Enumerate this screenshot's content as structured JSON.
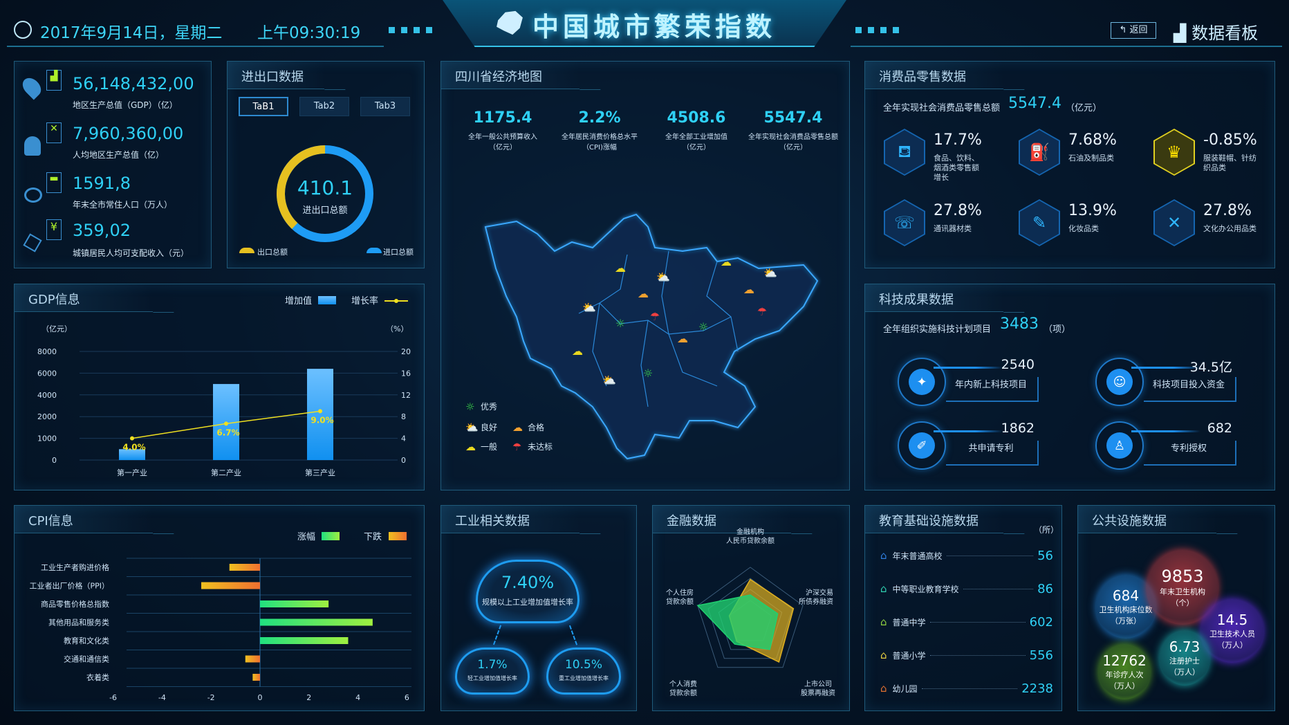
{
  "header": {
    "datetime": "2017年9月14日，星期二",
    "time": "上午09:30:19",
    "title": "中国城市繁荣指数",
    "back_label": "返回",
    "dashboard_label": "数据看板"
  },
  "overview": {
    "items": [
      {
        "value": "56,148,432,00",
        "label": "地区生产总值（GDP）（亿）",
        "icon": "location-pin-icon"
      },
      {
        "value": "7,960,360,00",
        "label": "人均地区生产总值（亿）",
        "icon": "worker-icon"
      },
      {
        "value": "1591,8",
        "label": "年末全市常住人口（万人）",
        "icon": "house-icon"
      },
      {
        "value": "359,02",
        "label": "城镇居民人均可支配收入（元）",
        "icon": "money-icon"
      }
    ]
  },
  "trade": {
    "title": "进出口数据",
    "tabs": [
      "TaB1",
      "Tab2",
      "Tab3"
    ],
    "active_tab": 0,
    "total_value": "410.1",
    "total_label": "进出口总额",
    "export_share": 0.38,
    "legend_export": "出口总额",
    "legend_import": "进口总额",
    "colors": {
      "export": "#e6c020",
      "import": "#1e9cf5"
    }
  },
  "map": {
    "title": "四川省经济地图",
    "stats": [
      {
        "value": "1175.4",
        "label": "全年一般公共预算收入",
        "unit": "（亿元）"
      },
      {
        "value": "2.2%",
        "label": "全年居民消费价格总水平",
        "unit": "（CPI)涨幅"
      },
      {
        "value": "4508.6",
        "label": "全年全部工业增加值",
        "unit": "（亿元）"
      },
      {
        "value": "5547.4",
        "label": "全年实现社会消费品零售总额",
        "unit": "（亿元）"
      }
    ],
    "legend": [
      {
        "label": "优秀",
        "icon": "sun-icon",
        "color": "#3ee04a"
      },
      {
        "label": "良好",
        "icon": "partly-cloudy-icon",
        "color": "#3ab8f0"
      },
      {
        "label": "合格",
        "icon": "thunder-cloud-icon",
        "color": "#f0a030"
      },
      {
        "label": "一般",
        "icon": "cloud-icon",
        "color": "#e8d820"
      },
      {
        "label": "未达标",
        "icon": "rain-cloud-icon",
        "color": "#f04040"
      }
    ]
  },
  "retail": {
    "title": "消费品零售数据",
    "total_label": "全年实现社会消费品零售总额",
    "total_value": "5547.4",
    "total_unit": "（亿元）",
    "items": [
      {
        "value": "17.7%",
        "label": "食品、饮料、烟酒类零售额增长",
        "icon": "food-drink-icon"
      },
      {
        "value": "7.68%",
        "label": "石油及制品类",
        "icon": "fuel-pump-icon"
      },
      {
        "value": "-0.85%",
        "label": "服装鞋帽、针纺织品类",
        "icon": "dress-icon"
      },
      {
        "value": "27.8%",
        "label": "通讯器材类",
        "icon": "phone-icon"
      },
      {
        "value": "13.9%",
        "label": "化妆品类",
        "icon": "cosmetics-icon"
      },
      {
        "value": "27.8%",
        "label": "文化办公用品类",
        "icon": "ruler-icon"
      }
    ]
  },
  "tech": {
    "title": "科技成果数据",
    "total_label": "全年组织实施科技计划项目",
    "total_value": "3483",
    "total_unit": "（项）",
    "items": [
      {
        "value": "2540",
        "label": "年内新上科技项目",
        "icon": "lightbulb-icon"
      },
      {
        "value": "34.5亿",
        "label": "科技项目投入资金",
        "icon": "investment-icon"
      },
      {
        "value": "1862",
        "label": "共申请专利",
        "icon": "patent-icon"
      },
      {
        "value": "682",
        "label": "专利授权",
        "icon": "user-award-icon"
      }
    ]
  },
  "industry": {
    "title": "工业相关数据",
    "main": {
      "value": "7.40%",
      "label": "规模以上工业增加值增长率"
    },
    "light": {
      "value": "1.7%",
      "label": "轻工业增加值增长率"
    },
    "heavy": {
      "value": "10.5%",
      "label": "重工业增加值增长率"
    }
  },
  "education": {
    "title": "教育基础设施数据",
    "unit": "（所）",
    "items": [
      {
        "label": "年末普通高校",
        "value": "56",
        "color": "#2f7fe0"
      },
      {
        "label": "中等职业教育学校",
        "value": "86",
        "color": "#2fd0b0"
      },
      {
        "label": "普通中学",
        "value": "602",
        "color": "#8ed040"
      },
      {
        "label": "普通小学",
        "value": "556",
        "color": "#e8d040"
      },
      {
        "label": "幼儿园",
        "value": "2238",
        "color": "#e07030"
      }
    ]
  },
  "public": {
    "title": "公共设施数据",
    "bubbles": [
      {
        "value": "684",
        "label": "卫生机构床位数",
        "unit": "（万张）",
        "color": "#1f78c8"
      },
      {
        "value": "9853",
        "label": "年末卫生机构",
        "unit": "（个）",
        "color": "#b83a40"
      },
      {
        "value": "14.5",
        "label": "卫生技术人员",
        "unit": "（万人）",
        "color": "#5a2ad0"
      },
      {
        "value": "6.73",
        "label": "注册护士",
        "unit": "（万人）",
        "color": "#1aa0a0"
      },
      {
        "value": "12762",
        "label": "年诊疗人次",
        "unit": "（万人）",
        "color": "#5aa020"
      }
    ]
  },
  "chart_data": [
    {
      "id": "gdp",
      "type": "bar",
      "title": "GDP信息",
      "categories": [
        "第一产业",
        "第二产业",
        "第三产业"
      ],
      "series": [
        {
          "name": "增加值",
          "type": "bar",
          "values": [
            500,
            5000,
            6400
          ],
          "color": "#1e9cf5"
        },
        {
          "name": "增长率",
          "type": "line",
          "axis": "right",
          "values": [
            4.0,
            6.7,
            9.0
          ],
          "labels": [
            "4.0%",
            "6.7%",
            "9.0%"
          ],
          "color": "#f0e020"
        }
      ],
      "ylabel": "（亿元）",
      "y2label": "（%）",
      "yticks": [
        "0",
        "1000",
        "2000",
        "4000",
        "6000",
        "8000"
      ],
      "y2ticks": [
        "0",
        "4",
        "8",
        "12",
        "16",
        "20"
      ],
      "y2lim": [
        0,
        20
      ],
      "grid": true,
      "legend": "top-right"
    },
    {
      "id": "cpi",
      "type": "bar",
      "orientation": "horizontal",
      "title": "CPI信息",
      "categories": [
        "工业生产者购进价格",
        "工业者出厂价格（PPI）",
        "商品零售价格总指数",
        "其他用品和服务类",
        "教育和文化类",
        "交通和通信类",
        "衣着类"
      ],
      "values": [
        -1.25,
        -2.4,
        2.8,
        4.6,
        3.6,
        -0.6,
        -0.3
      ],
      "legend_up": "涨幅",
      "legend_down": "下跌",
      "colors": {
        "up": [
          "#20e080",
          "#a0f040"
        ],
        "down": [
          "#f0c020",
          "#f07030"
        ]
      },
      "xticks": [
        "-6",
        "-4",
        "-2",
        "0",
        "2",
        "4",
        "6"
      ],
      "xlim": [
        -6,
        6
      ],
      "grid": true,
      "legend": "top-right"
    },
    {
      "id": "finance",
      "type": "radar",
      "title": "金融数据",
      "axes": [
        "金融机构\n人民币贷款余额",
        "沪深交易\n所债券融资",
        "上市公司\n股票再融资",
        "个人消费\n贷款余额",
        "个人住房\n贷款余额"
      ],
      "series": [
        {
          "values": [
            0.78,
            0.82,
            0.88,
            0.42,
            0.4
          ],
          "color": "#e0b020"
        },
        {
          "values": [
            0.5,
            0.52,
            0.6,
            0.48,
            1.0
          ],
          "color": "#20d070"
        }
      ]
    }
  ]
}
